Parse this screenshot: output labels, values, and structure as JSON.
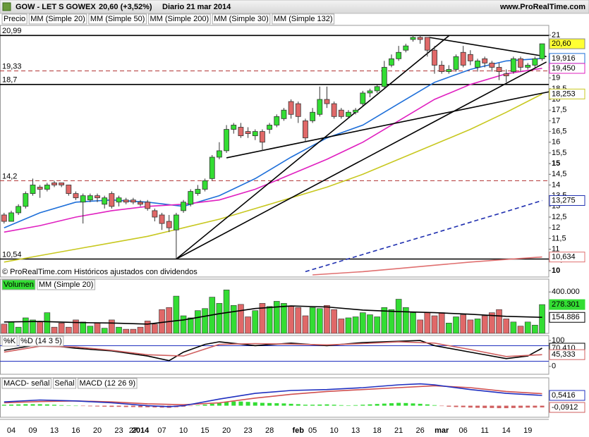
{
  "header": {
    "title": "GOW - LET S GOWEX",
    "price": "20,60 (+3,52%)",
    "period": "Diario  21 mar 2014",
    "site": "www.ProRealTime.com"
  },
  "chart_data": [
    {
      "type": "candlestick",
      "note": "© ProRealTime.com  Históricos ajustados con dividendos",
      "categories": [
        null,
        "04",
        null,
        null,
        "09",
        null,
        null,
        "13",
        null,
        null,
        "16",
        null,
        null,
        "20",
        null,
        null,
        "23",
        null,
        "27",
        "2014",
        null,
        null,
        "07",
        null,
        null,
        "10",
        null,
        null,
        "15",
        null,
        null,
        "20",
        null,
        null,
        "23",
        null,
        null,
        "28",
        null,
        null,
        null,
        "feb",
        null,
        "05",
        null,
        null,
        "10",
        null,
        null,
        "13",
        null,
        null,
        "18",
        null,
        null,
        "21",
        null,
        null,
        "26",
        null,
        null,
        "mar",
        null,
        null,
        "06",
        null,
        null,
        "11",
        null,
        null,
        "14",
        null,
        null,
        "19",
        null,
        null
      ],
      "ylim": [
        9.7,
        21.46
      ],
      "yticks": [
        10,
        {
          "value": 10.5,
          "label": "10,5"
        },
        11,
        {
          "value": 11.5,
          "label": "11,5"
        },
        12,
        {
          "value": 12.5,
          "label": "12,5"
        },
        13,
        {
          "value": 13.5,
          "label": "13,5"
        },
        14,
        {
          "value": 14.5,
          "label": "14,5"
        },
        15,
        {
          "value": 15.5,
          "label": "15,5"
        },
        16,
        {
          "value": 16.5,
          "label": "16,5"
        },
        17,
        {
          "value": 17.5,
          "label": "17,5"
        },
        18,
        {
          "value": 18.5,
          "label": "18,5"
        },
        19,
        {
          "value": 19.5,
          "label": "19,5"
        },
        20,
        {
          "value": 20.5,
          "label": "20,5"
        },
        21
      ],
      "candles": {
        "name": "Precio",
        "up_color": "#33dd33",
        "down_color": "#e06868",
        "last_label": "20,60",
        "open": [
          12.6,
          12.3,
          12.7,
          13.0,
          13.6,
          13.9,
          13.8,
          14.1,
          14.1,
          14.0,
          13.6,
          13.2,
          13.3,
          13.5,
          13.1,
          13.6,
          13.2,
          13.3,
          13.3,
          13.2,
          13.2,
          12.8,
          12.6,
          12.3,
          11.9,
          12.8,
          13.1,
          13.6,
          13.8,
          14.3,
          15.3,
          15.6,
          16.6,
          16.7,
          16.5,
          16.3,
          16.5,
          16.6,
          16.8,
          17.1,
          17.9,
          17.8,
          17.0,
          17.0,
          17.3,
          18.0,
          17.8,
          17.5,
          17.2,
          17.4,
          17.8,
          18.3,
          18.4,
          18.6,
          19.6,
          19.9,
          20.3,
          20.8,
          20.9,
          20.9,
          20.3,
          19.6,
          19.3,
          19.4,
          20.2,
          20.1,
          19.5,
          19.9,
          19.7,
          19.5,
          19.2,
          19.3,
          19.9,
          19.5,
          19.6,
          19.9
        ],
        "high": [
          12.7,
          12.8,
          13.1,
          13.7,
          14.3,
          14.0,
          14.1,
          14.2,
          14.1,
          14.0,
          13.7,
          13.6,
          13.6,
          13.6,
          13.5,
          13.7,
          13.5,
          13.4,
          13.4,
          13.3,
          13.3,
          12.9,
          12.7,
          12.6,
          12.7,
          13.3,
          13.8,
          14.0,
          14.3,
          15.4,
          16.0,
          16.8,
          16.9,
          16.9,
          16.7,
          16.6,
          16.6,
          16.9,
          17.3,
          17.6,
          18.0,
          17.9,
          17.1,
          17.6,
          18.6,
          18.6,
          17.9,
          17.6,
          17.5,
          17.6,
          18.4,
          18.5,
          18.7,
          19.8,
          20.1,
          20.5,
          20.6,
          21.0,
          20.99,
          20.9,
          20.5,
          19.8,
          19.6,
          20.1,
          20.5,
          20.3,
          19.9,
          20.0,
          19.8,
          19.7,
          19.4,
          20.0,
          20.0,
          19.7,
          20.0,
          20.6
        ],
        "low": [
          12.2,
          12.3,
          12.6,
          12.9,
          13.5,
          13.4,
          13.7,
          13.9,
          13.9,
          13.5,
          13.3,
          12.2,
          13.2,
          13.2,
          12.9,
          12.9,
          13.0,
          13.1,
          13.1,
          13.0,
          12.8,
          12.3,
          11.9,
          11.8,
          10.54,
          12.7,
          13.0,
          13.5,
          13.7,
          14.2,
          15.2,
          15.5,
          16.4,
          16.2,
          16.2,
          16.1,
          15.6,
          16.4,
          16.7,
          17.0,
          17.1,
          16.9,
          16.0,
          16.9,
          17.2,
          17.6,
          17.1,
          17.1,
          17.1,
          17.3,
          17.7,
          18.1,
          18.3,
          18.5,
          19.5,
          19.8,
          20.2,
          20.7,
          20.6,
          20.0,
          19.2,
          19.2,
          19.2,
          19.3,
          19.5,
          19.6,
          19.3,
          19.5,
          19.3,
          18.9,
          18.8,
          19.2,
          19.3,
          19.4,
          19.5,
          19.8
        ],
        "close": [
          12.3,
          12.7,
          13.0,
          13.6,
          14.0,
          13.8,
          14.0,
          14.0,
          14.0,
          13.6,
          13.4,
          13.5,
          13.5,
          13.4,
          13.4,
          13.0,
          13.4,
          13.2,
          13.2,
          13.1,
          12.9,
          12.5,
          12.2,
          12.0,
          12.6,
          13.2,
          13.7,
          13.8,
          14.2,
          15.3,
          15.6,
          16.6,
          16.8,
          16.3,
          16.4,
          16.5,
          16.0,
          16.8,
          17.2,
          17.5,
          17.3,
          17.2,
          16.2,
          17.4,
          18.0,
          17.8,
          17.2,
          17.2,
          17.4,
          17.5,
          18.3,
          18.4,
          18.6,
          19.5,
          19.9,
          20.2,
          20.5,
          20.9,
          20.8,
          20.3,
          19.6,
          19.3,
          19.4,
          20.0,
          19.6,
          19.8,
          19.8,
          19.7,
          19.5,
          19.3,
          19.1,
          19.9,
          19.5,
          19.6,
          19.9,
          20.6
        ]
      },
      "series": [
        {
          "name": "MM (Simple 20)",
          "color": "#1e6fd9",
          "last_label": "19,916",
          "x": [
            0,
            5,
            10,
            15,
            20,
            25,
            30,
            35,
            40,
            45,
            50,
            55,
            60,
            65,
            70,
            75
          ],
          "values": [
            12.0,
            12.7,
            13.2,
            13.3,
            13.2,
            13.0,
            13.5,
            14.3,
            15.3,
            16.2,
            16.8,
            17.8,
            18.8,
            19.4,
            19.8,
            19.916
          ]
        },
        {
          "name": "MM (Simple 50)",
          "color": "#c8c820",
          "last_label": "18,253",
          "x": [
            0,
            5,
            10,
            15,
            20,
            25,
            30,
            35,
            40,
            45,
            50,
            55,
            60,
            65,
            70,
            75
          ],
          "values": [
            10.4,
            10.7,
            11.0,
            11.3,
            11.6,
            12.0,
            12.4,
            12.9,
            13.4,
            13.9,
            14.5,
            15.2,
            15.9,
            16.6,
            17.4,
            18.253
          ]
        },
        {
          "name": "MM (Simple 200)",
          "color": "#e07070",
          "last_label": "10,634",
          "x": [
            43,
            50,
            55,
            60,
            65,
            70,
            75
          ],
          "values": [
            9.8,
            9.95,
            10.1,
            10.25,
            10.4,
            10.52,
            10.634
          ]
        },
        {
          "name": "MM (Simple 30)",
          "color": "#e020c0",
          "last_label": "19,450",
          "x": [
            0,
            5,
            10,
            15,
            20,
            25,
            30,
            35,
            40,
            45,
            50,
            55,
            60,
            65,
            70,
            75
          ],
          "values": [
            11.8,
            12.1,
            12.5,
            12.8,
            13.0,
            13.1,
            13.3,
            13.8,
            14.5,
            15.2,
            16.0,
            17.0,
            18.0,
            18.7,
            19.2,
            19.45
          ]
        },
        {
          "name": "MM (Simple 132)",
          "color": "#2030b0",
          "dashed": true,
          "last_label": "13,275",
          "x": [
            42,
            45,
            50,
            55,
            60,
            65,
            70,
            75
          ],
          "values": [
            9.95,
            10.25,
            10.75,
            11.25,
            11.75,
            12.26,
            12.76,
            13.275
          ]
        }
      ],
      "levels": [
        {
          "value": 20.99,
          "label": "20,99",
          "style": "solid"
        },
        {
          "value": 19.33,
          "label": "19,33",
          "style": "dashed"
        },
        {
          "value": 18.7,
          "label": "18,7",
          "style": "solid"
        },
        {
          "value": 14.2,
          "label": "14,2",
          "style": "dashed"
        },
        {
          "value": 10.54,
          "label": "10,54",
          "style": "solid"
        }
      ],
      "trendlines": [
        {
          "x": [
            24,
            62.1
          ],
          "values": [
            10.54,
            21.0
          ]
        },
        {
          "x": [
            24,
            75.6
          ],
          "values": [
            10.54,
            19.75
          ]
        },
        {
          "x": [
            31,
            76
          ],
          "values": [
            15.27,
            18.36
          ]
        },
        {
          "x": [
            59.2,
            75.6
          ],
          "values": [
            20.9,
            20.0
          ]
        }
      ]
    },
    {
      "type": "bar",
      "ylim": [
        0,
        524000
      ],
      "yticks": [
        {
          "value": 400000,
          "label": "400.000"
        }
      ],
      "series": [
        {
          "name": "Volumen",
          "type": "bar",
          "color": "#33dd33",
          "last_label": "278.301",
          "values": [
            90000,
            110000,
            60000,
            150000,
            130000,
            110000,
            200000,
            60000,
            100000,
            60000,
            130000,
            110000,
            70000,
            100000,
            50000,
            130000,
            60000,
            40000,
            40000,
            60000,
            120000,
            90000,
            230000,
            250000,
            360000,
            170000,
            150000,
            220000,
            240000,
            350000,
            290000,
            420000,
            270000,
            280000,
            160000,
            220000,
            290000,
            260000,
            310000,
            290000,
            260000,
            250000,
            170000,
            250000,
            240000,
            270000,
            230000,
            140000,
            150000,
            160000,
            200000,
            180000,
            160000,
            250000,
            230000,
            330000,
            250000,
            200000,
            130000,
            200000,
            170000,
            200000,
            100000,
            160000,
            180000,
            130000,
            140000,
            170000,
            200000,
            230000,
            140000,
            110000,
            70000,
            110000,
            80000,
            278301
          ]
        },
        {
          "name": "MM (Simple 20)",
          "type": "line",
          "color": "#000000",
          "last_label": "154.886",
          "x": [
            0,
            5,
            10,
            15,
            20,
            25,
            30,
            35,
            40,
            45,
            50,
            55,
            60,
            65,
            70,
            75
          ],
          "values": [
            110000,
            115000,
            105000,
            100000,
            90000,
            130000,
            190000,
            240000,
            265000,
            255000,
            225000,
            210000,
            200000,
            185000,
            165000,
            154886
          ]
        }
      ]
    },
    {
      "type": "line",
      "ylim": [
        -30.6,
        119.4
      ],
      "yticks": [
        100,
        0
      ],
      "levels": [
        80,
        20
      ],
      "series": [
        {
          "name": "%K",
          "color": "#000000",
          "last_label": "70,410",
          "x": [
            0,
            5,
            10,
            15,
            20,
            23,
            25,
            28,
            30,
            35,
            40,
            45,
            50,
            55,
            58,
            60,
            65,
            70,
            73,
            75
          ],
          "values": [
            62,
            85,
            70,
            60,
            40,
            22,
            55,
            85,
            95,
            80,
            90,
            80,
            92,
            97,
            100,
            80,
            55,
            30,
            40,
            70.41
          ]
        },
        {
          "name": "%D (14 3 5)",
          "color": "#d06060",
          "last_label": "45,333",
          "x": [
            0,
            5,
            10,
            15,
            20,
            25,
            30,
            35,
            40,
            45,
            50,
            55,
            60,
            65,
            70,
            75
          ],
          "values": [
            55,
            78,
            75,
            62,
            45,
            40,
            85,
            88,
            86,
            83,
            88,
            95,
            90,
            65,
            38,
            45.333
          ]
        }
      ]
    },
    {
      "type": "line",
      "ylim": [
        -0.61,
        1.47
      ],
      "series": [
        {
          "name": "MACD- señal",
          "type": "bar",
          "color": "#d06060",
          "up_color": "#33dd33",
          "last_label": "-0,0912",
          "values": [
            0.05,
            0.06,
            0.07,
            0.08,
            0.08,
            0.08,
            0.07,
            0.05,
            0.03,
            0.01,
            0.0,
            -0.02,
            -0.03,
            -0.04,
            -0.05,
            -0.06,
            -0.06,
            -0.07,
            -0.07,
            -0.08,
            -0.08,
            -0.09,
            -0.1,
            -0.11,
            -0.08,
            -0.05,
            -0.02,
            0.02,
            0.06,
            0.1,
            0.15,
            0.2,
            0.22,
            0.22,
            0.2,
            0.18,
            0.15,
            0.14,
            0.13,
            0.12,
            0.1,
            0.08,
            0.05,
            0.05,
            0.06,
            0.07,
            0.05,
            0.03,
            0.02,
            0.03,
            0.05,
            0.07,
            0.09,
            0.11,
            0.13,
            0.15,
            0.14,
            0.12,
            0.1,
            0.07,
            0.03,
            -0.02,
            -0.05,
            -0.07,
            -0.08,
            -0.1,
            -0.11,
            -0.12,
            -0.12,
            -0.13,
            -0.13,
            -0.12,
            -0.11,
            -0.1,
            -0.1,
            -0.0912
          ]
        },
        {
          "name": "Señal",
          "type": "line",
          "color": "#d05050",
          "x": [
            0,
            5,
            10,
            15,
            20,
            25,
            30,
            35,
            40,
            45,
            50,
            55,
            60,
            65,
            70,
            75
          ],
          "values": [
            0.15,
            0.22,
            0.25,
            0.2,
            0.1,
            0.05,
            0.15,
            0.4,
            0.6,
            0.75,
            0.85,
            0.95,
            1.05,
            0.95,
            0.75,
            0.6328
          ]
        },
        {
          "name": "MACD (12 26 9)",
          "type": "line",
          "color": "#2030c0",
          "last_label": "0,5416",
          "x": [
            0,
            5,
            10,
            15,
            20,
            23,
            25,
            30,
            35,
            40,
            45,
            50,
            55,
            58,
            60,
            65,
            70,
            75
          ],
          "values": [
            0.2,
            0.3,
            0.25,
            0.15,
            0.0,
            -0.05,
            0.0,
            0.35,
            0.65,
            0.8,
            0.85,
            0.95,
            1.1,
            1.15,
            1.1,
            0.85,
            0.65,
            0.5416
          ]
        }
      ]
    }
  ]
}
